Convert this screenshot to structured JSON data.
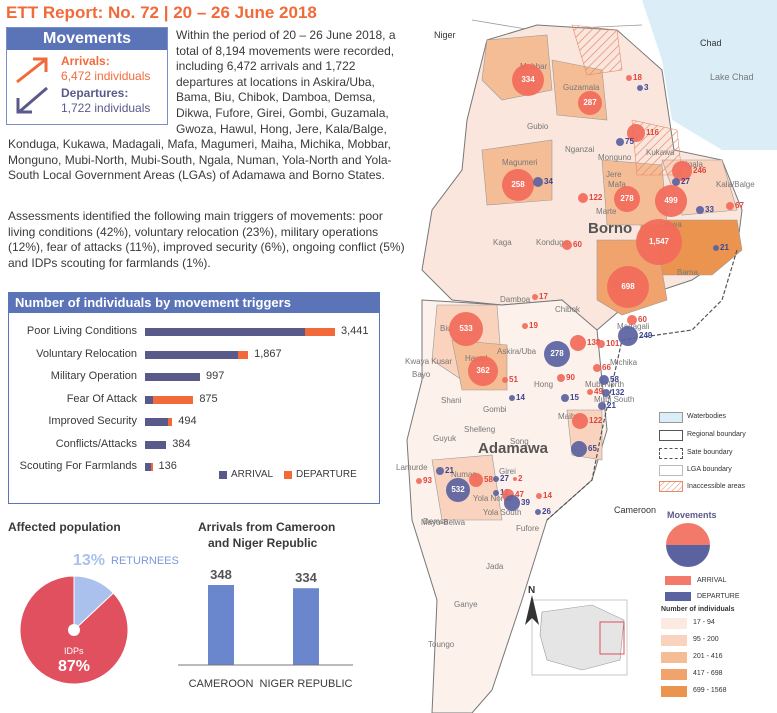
{
  "header": {
    "title": "ETT Report: No. 72 | 20 – 26 June 2018"
  },
  "movements_box": {
    "title": "Movements",
    "arrivals_label": "Arrivals:",
    "arrivals_value": "6,472 individuals",
    "departures_label": "Departures:",
    "departures_value": "1,722 individuals"
  },
  "intro": {
    "p1": "Within the period of 20 – 26 June 2018, a total of 8,194 movements were recorded, including 6,472 arrivals and 1,722 departures at locations in Askira/Uba, Bama, Biu, Chibok, Damboa, Demsa, Dikwa, Fufore, Girei, Gombi, Guzamala, Gwoza, Hawul, Hong, Jere, Kala/Balge,",
    "p1b": "Konduga, Kukawa, Madagali, Mafa, Magumeri, Maiha, Michika, Mobbar, Monguno, Mubi-North, Mubi-South, Ngala, Numan, Yola-North and Yola-South Local Government Areas (LGAs) of Adamawa and Borno States.",
    "p2": "Assessments identified the following main triggers of movements: poor living conditions (42%), voluntary relocation (23%), military operations (12%), fear of attacks (11%), improved security (6%), ongoing conflict (5%) and IDPs scouting for farmlands (1%)."
  },
  "triggers_chart": {
    "title": "Number of individuals by movement triggers",
    "legend_arrival": "ARRIVAL",
    "legend_departure": "DEPARTURE",
    "colors": {
      "arrival": "#5a5a8a",
      "departure": "#f26a3a"
    }
  },
  "chart_data": [
    {
      "type": "bar",
      "title": "Number of individuals by movement triggers",
      "orientation": "horizontal",
      "stacked": true,
      "categories": [
        "Poor Living Conditions",
        "Voluntary Relocation",
        "Military Operation",
        "Fear Of Attack",
        "Improved Security",
        "Conflicts/Attacks",
        "Scouting For Farmlands"
      ],
      "totals": [
        "3,441",
        "1,867",
        "997",
        "875",
        "494",
        "384",
        "136"
      ],
      "series": [
        {
          "name": "ARRIVAL",
          "values": [
            2900,
            1680,
            997,
            140,
            420,
            384,
            100
          ]
        },
        {
          "name": "DEPARTURE",
          "values": [
            541,
            187,
            0,
            735,
            74,
            0,
            36
          ]
        }
      ]
    },
    {
      "type": "pie",
      "title": "Affected population",
      "labels": [
        "IDPs",
        "RETURNEES"
      ],
      "values": [
        87,
        13
      ],
      "display": [
        "87%",
        "13%"
      ]
    },
    {
      "type": "bar",
      "title": "Arrivals from Cameroon and Niger Republic",
      "categories": [
        "CAMEROON",
        "NIGER REPUBLIC"
      ],
      "values": [
        348,
        334
      ]
    }
  ],
  "affected": {
    "title": "Affected population",
    "returnees_pct": "13%",
    "returnees_label": "RETURNEES",
    "idps_label": "IDPs",
    "idps_pct": "87%",
    "colors": {
      "idps": "#e0505f",
      "returnees": "#a9c1ec"
    }
  },
  "arrivals_ext": {
    "title_l1": "Arrivals from Cameroon",
    "title_l2": "and Niger Republic",
    "cameroon_value": "348",
    "niger_value": "334",
    "cameroon_label": "CAMEROON",
    "niger_label": "NIGER REPUBLIC"
  },
  "map": {
    "country_labels": {
      "niger": "Niger",
      "chad": "Chad",
      "lake": "Lake Chad",
      "cameroon": "Cameroon"
    },
    "state_labels": {
      "borno": "Borno",
      "adamawa": "Adamawa"
    },
    "lgas": [
      "Mobbar",
      "Guzamala",
      "Gubio",
      "Nganzai",
      "Magumeri",
      "Monguno",
      "Kukawa",
      "Marte",
      "Mafa",
      "Dikwa",
      "Ngala",
      "Kala/Balge",
      "Kaga",
      "Konduga",
      "Bama",
      "Gwoza",
      "Damboa",
      "Chibok",
      "Madagali",
      "Biu",
      "Kwaya Kusar",
      "Askira/Uba",
      "Michika",
      "Hawul",
      "Bayo",
      "Shani",
      "Hong",
      "Gombi",
      "Mubi North",
      "Mubi South",
      "Maiha",
      "Shelleng",
      "Song",
      "Guyuk",
      "Lamurde",
      "Girei",
      "Numan",
      "Demsa",
      "Yola North",
      "Yola South",
      "Fufore",
      "Mayo-Belwa",
      "Jada",
      "Ganye",
      "Toungo",
      "Jere"
    ],
    "flows": [
      {
        "num": "334",
        "kind": "arrival"
      },
      {
        "num": "287",
        "kind": "arrival"
      },
      {
        "num": "18",
        "kind": "arrival"
      },
      {
        "num": "3",
        "kind": "departure"
      },
      {
        "num": "116",
        "kind": "arrival"
      },
      {
        "num": "75",
        "kind": "departure"
      },
      {
        "num": "258",
        "kind": "arrival"
      },
      {
        "num": "34",
        "kind": "departure"
      },
      {
        "num": "122",
        "kind": "arrival"
      },
      {
        "num": "278",
        "kind": "arrival"
      },
      {
        "num": "246",
        "kind": "arrival"
      },
      {
        "num": "27",
        "kind": "departure"
      },
      {
        "num": "499",
        "kind": "arrival"
      },
      {
        "num": "33",
        "kind": "departure"
      },
      {
        "num": "67",
        "kind": "arrival"
      },
      {
        "num": "60",
        "kind": "arrival"
      },
      {
        "num": "1,547",
        "kind": "arrival"
      },
      {
        "num": "21",
        "kind": "departure"
      },
      {
        "num": "698",
        "kind": "arrival"
      },
      {
        "num": "17",
        "kind": "arrival"
      },
      {
        "num": "533",
        "kind": "arrival"
      },
      {
        "num": "19",
        "kind": "arrival"
      },
      {
        "num": "138",
        "kind": "arrival"
      },
      {
        "num": "278",
        "kind": "departure"
      },
      {
        "num": "60",
        "kind": "arrival"
      },
      {
        "num": "249",
        "kind": "departure"
      },
      {
        "num": "101",
        "kind": "arrival"
      },
      {
        "num": "362",
        "kind": "arrival"
      },
      {
        "num": "90",
        "kind": "arrival"
      },
      {
        "num": "66",
        "kind": "arrival"
      },
      {
        "num": "58",
        "kind": "departure"
      },
      {
        "num": "51",
        "kind": "arrival"
      },
      {
        "num": "14",
        "kind": "departure"
      },
      {
        "num": "15",
        "kind": "departure"
      },
      {
        "num": "132",
        "kind": "departure"
      },
      {
        "num": "49",
        "kind": "arrival"
      },
      {
        "num": "21",
        "kind": "departure"
      },
      {
        "num": "122",
        "kind": "arrival"
      },
      {
        "num": "65",
        "kind": "departure"
      },
      {
        "num": "93",
        "kind": "arrival"
      },
      {
        "num": "21",
        "kind": "departure"
      },
      {
        "num": "58",
        "kind": "arrival"
      },
      {
        "num": "532",
        "kind": "departure"
      },
      {
        "num": "27",
        "kind": "departure"
      },
      {
        "num": "2",
        "kind": "arrival"
      },
      {
        "num": "12",
        "kind": "departure"
      },
      {
        "num": "47",
        "kind": "arrival"
      },
      {
        "num": "39",
        "kind": "departure"
      },
      {
        "num": "14",
        "kind": "arrival"
      },
      {
        "num": "26",
        "kind": "departure"
      }
    ],
    "legend": {
      "waterbodies": "Waterbodies",
      "regional": "Regional boundary",
      "state": "Sate boundary",
      "lga": "LGA boundary",
      "inaccessible": "Inaccessible areas",
      "movements": "Movements",
      "arrival": "ARRIVAL",
      "departure": "DEPARTURE",
      "num_title": "Number of individuals",
      "ranges": [
        "17 - 94",
        "95 - 200",
        "201 - 416",
        "417 - 698",
        "699 - 1568"
      ],
      "range_colors": [
        "#fce9e0",
        "#f9d3bd",
        "#f5bd96",
        "#f0a36d",
        "#eb9450"
      ],
      "north": "N"
    }
  }
}
